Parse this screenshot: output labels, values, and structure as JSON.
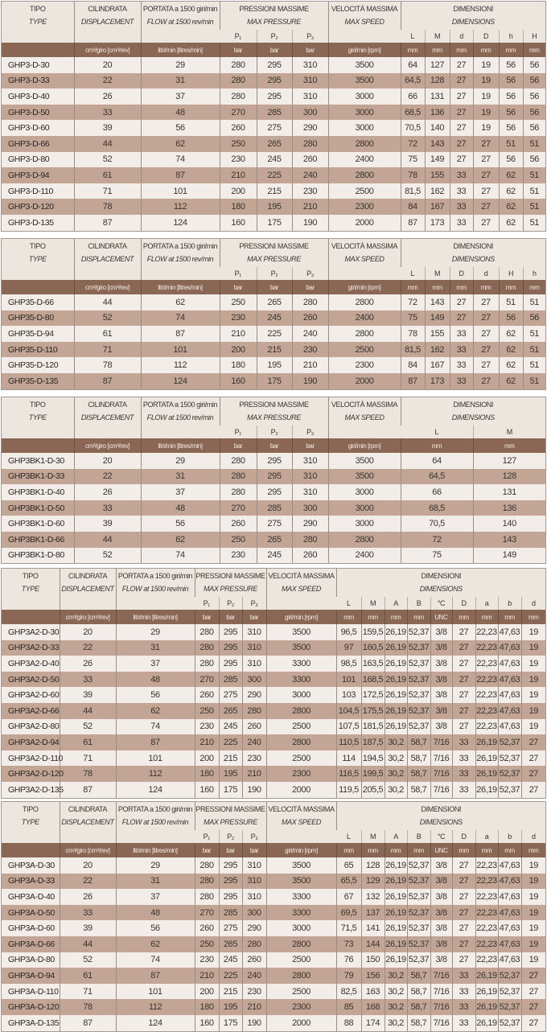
{
  "header": {
    "type_it": "TIPO",
    "type_en": "TYPE",
    "disp_it": "CILINDRATA",
    "disp_en": "DISPLACEMENT",
    "flow_it": "PORTATA a 1500 giri/min",
    "flow_en": "FLOW at 1500 rev/min",
    "press_it": "PRESSIONI MASSIME",
    "press_en": "MAX PRESSURE",
    "speed_it": "VELOCITÀ MASSIMA",
    "speed_en": "MAX SPEED",
    "dims_it": "DIMENSIONI",
    "dims_en": "DIMENSIONS",
    "pressure_cols": [
      "P₁",
      "P₂",
      "P₃"
    ],
    "unit_disp": "cm³/giro [cm³/rev]",
    "unit_flow": "litri/min [litres/min]",
    "unit_press": "bar",
    "unit_speed": "giri/min [rpm]"
  },
  "colors": {
    "header_bg": "#ede6df",
    "unit_bar": "#8a6654",
    "row_light": "#f2ede8",
    "row_dark": "#c2a594"
  },
  "tables": [
    {
      "dim_cols": [
        "L",
        "M",
        "d",
        "D",
        "h",
        "H"
      ],
      "dim_units": [
        "mm",
        "mm",
        "mm",
        "mm",
        "mm",
        "mm"
      ],
      "rows": [
        {
          "model": "GHP3-D-30",
          "values": [
            "20",
            "29",
            "280",
            "295",
            "310",
            "3500",
            "64",
            "127",
            "27",
            "19",
            "56",
            "56"
          ]
        },
        {
          "model": "GHP3-D-33",
          "values": [
            "22",
            "31",
            "280",
            "295",
            "310",
            "3500",
            "64,5",
            "128",
            "27",
            "19",
            "56",
            "56"
          ]
        },
        {
          "model": "GHP3-D-40",
          "values": [
            "26",
            "37",
            "280",
            "295",
            "310",
            "3000",
            "66",
            "131",
            "27",
            "19",
            "56",
            "56"
          ]
        },
        {
          "model": "GHP3-D-50",
          "values": [
            "33",
            "48",
            "270",
            "285",
            "300",
            "3000",
            "68,5",
            "136",
            "27",
            "19",
            "56",
            "56"
          ]
        },
        {
          "model": "GHP3-D-60",
          "values": [
            "39",
            "56",
            "260",
            "275",
            "290",
            "3000",
            "70,5",
            "140",
            "27",
            "19",
            "56",
            "56"
          ]
        },
        {
          "model": "GHP3-D-66",
          "values": [
            "44",
            "62",
            "250",
            "265",
            "280",
            "2800",
            "72",
            "143",
            "27",
            "27",
            "51",
            "51"
          ]
        },
        {
          "model": "GHP3-D-80",
          "values": [
            "52",
            "74",
            "230",
            "245",
            "260",
            "2400",
            "75",
            "149",
            "27",
            "27",
            "56",
            "56"
          ]
        },
        {
          "model": "GHP3-D-94",
          "values": [
            "61",
            "87",
            "210",
            "225",
            "240",
            "2800",
            "78",
            "155",
            "33",
            "27",
            "62",
            "51"
          ]
        },
        {
          "model": "GHP3-D-110",
          "values": [
            "71",
            "101",
            "200",
            "215",
            "230",
            "2500",
            "81,5",
            "162",
            "33",
            "27",
            "62",
            "51"
          ]
        },
        {
          "model": "GHP3-D-120",
          "values": [
            "78",
            "112",
            "180",
            "195",
            "210",
            "2300",
            "84",
            "167",
            "33",
            "27",
            "62",
            "51"
          ]
        },
        {
          "model": "GHP3-D-135",
          "values": [
            "87",
            "124",
            "160",
            "175",
            "190",
            "2000",
            "87",
            "173",
            "33",
            "27",
            "62",
            "51"
          ]
        }
      ]
    },
    {
      "dim_cols": [
        "L",
        "M",
        "D",
        "d",
        "H",
        "h"
      ],
      "dim_units": [
        "mm",
        "mm",
        "mm",
        "mm",
        "mm",
        "mm"
      ],
      "rows": [
        {
          "model": "GHP35-D-66",
          "values": [
            "44",
            "62",
            "250",
            "265",
            "280",
            "2800",
            "72",
            "143",
            "27",
            "27",
            "51",
            "51"
          ]
        },
        {
          "model": "GHP35-D-80",
          "values": [
            "52",
            "74",
            "230",
            "245",
            "260",
            "2400",
            "75",
            "149",
            "27",
            "27",
            "56",
            "56"
          ]
        },
        {
          "model": "GHP35-D-94",
          "values": [
            "61",
            "87",
            "210",
            "225",
            "240",
            "2800",
            "78",
            "155",
            "33",
            "27",
            "62",
            "51"
          ]
        },
        {
          "model": "GHP35-D-110",
          "values": [
            "71",
            "101",
            "200",
            "215",
            "230",
            "2500",
            "81,5",
            "162",
            "33",
            "27",
            "62",
            "51"
          ]
        },
        {
          "model": "GHP35-D-120",
          "values": [
            "78",
            "112",
            "180",
            "195",
            "210",
            "2300",
            "84",
            "167",
            "33",
            "27",
            "62",
            "51"
          ]
        },
        {
          "model": "GHP35-D-135",
          "values": [
            "87",
            "124",
            "160",
            "175",
            "190",
            "2000",
            "87",
            "173",
            "33",
            "27",
            "62",
            "51"
          ]
        }
      ]
    },
    {
      "dim_cols": [
        "L",
        "M"
      ],
      "dim_units": [
        "mm",
        "mm"
      ],
      "rows": [
        {
          "model": "GHP3BK1-D-30",
          "values": [
            "20",
            "29",
            "280",
            "295",
            "310",
            "3500",
            "64",
            "127"
          ]
        },
        {
          "model": "GHP3BK1-D-33",
          "values": [
            "22",
            "31",
            "280",
            "295",
            "310",
            "3500",
            "64,5",
            "128"
          ]
        },
        {
          "model": "GHP3BK1-D-40",
          "values": [
            "26",
            "37",
            "280",
            "295",
            "310",
            "3000",
            "66",
            "131"
          ]
        },
        {
          "model": "GHP3BK1-D-50",
          "values": [
            "33",
            "48",
            "270",
            "285",
            "300",
            "3000",
            "68,5",
            "136"
          ]
        },
        {
          "model": "GHP3BK1-D-60",
          "values": [
            "39",
            "56",
            "260",
            "275",
            "290",
            "3000",
            "70,5",
            "140"
          ]
        },
        {
          "model": "GHP3BK1-D-66",
          "values": [
            "44",
            "62",
            "250",
            "265",
            "280",
            "2800",
            "72",
            "143"
          ]
        },
        {
          "model": "GHP3BK1-D-80",
          "values": [
            "52",
            "74",
            "230",
            "245",
            "260",
            "2400",
            "75",
            "149"
          ]
        }
      ]
    },
    {
      "dim_cols": [
        "L",
        "M",
        "A",
        "B",
        "°C",
        "D",
        "a",
        "b",
        "d"
      ],
      "dim_units": [
        "mm",
        "mm",
        "mm",
        "mm",
        "UNC",
        "mm",
        "mm",
        "mm",
        "mm"
      ],
      "rows": [
        {
          "model": "GHP3A2-D-30",
          "values": [
            "20",
            "29",
            "280",
            "295",
            "310",
            "3500",
            "96,5",
            "159,5",
            "26,19",
            "52,37",
            "3/8",
            "27",
            "22,23",
            "47,63",
            "19"
          ]
        },
        {
          "model": "GHP3A2-D-33",
          "values": [
            "22",
            "31",
            "280",
            "295",
            "310",
            "3500",
            "97",
            "160,5",
            "26,19",
            "52,37",
            "3/8",
            "27",
            "22,23",
            "47,63",
            "19"
          ]
        },
        {
          "model": "GHP3A2-D-40",
          "values": [
            "26",
            "37",
            "280",
            "295",
            "310",
            "3300",
            "98,5",
            "163,5",
            "26,19",
            "52,37",
            "3/8",
            "27",
            "22,23",
            "47,63",
            "19"
          ]
        },
        {
          "model": "GHP3A2-D-50",
          "values": [
            "33",
            "48",
            "270",
            "285",
            "300",
            "3300",
            "101",
            "168,5",
            "26,19",
            "52,37",
            "3/8",
            "27",
            "22,23",
            "47,63",
            "19"
          ]
        },
        {
          "model": "GHP3A2-D-60",
          "values": [
            "39",
            "56",
            "260",
            "275",
            "290",
            "3000",
            "103",
            "172,5",
            "26,19",
            "52,37",
            "3/8",
            "27",
            "22,23",
            "47,63",
            "19"
          ]
        },
        {
          "model": "GHP3A2-D-66",
          "values": [
            "44",
            "62",
            "250",
            "265",
            "280",
            "2800",
            "104,5",
            "175,5",
            "26,19",
            "52,37",
            "3/8",
            "27",
            "22,23",
            "47,63",
            "19"
          ]
        },
        {
          "model": "GHP3A2-D-80",
          "values": [
            "52",
            "74",
            "230",
            "245",
            "260",
            "2500",
            "107,5",
            "181,5",
            "26,19",
            "52,37",
            "3/8",
            "27",
            "22,23",
            "47,63",
            "19"
          ]
        },
        {
          "model": "GHP3A2-D-94",
          "values": [
            "61",
            "87",
            "210",
            "225",
            "240",
            "2800",
            "110,5",
            "187,5",
            "30,2",
            "58,7",
            "7/16",
            "33",
            "26,19",
            "52,37",
            "27"
          ]
        },
        {
          "model": "GHP3A2-D-110",
          "values": [
            "71",
            "101",
            "200",
            "215",
            "230",
            "2500",
            "114",
            "194,5",
            "30,2",
            "58,7",
            "7/16",
            "33",
            "26,19",
            "52,37",
            "27"
          ]
        },
        {
          "model": "GHP3A2-D-120",
          "values": [
            "78",
            "112",
            "180",
            "195",
            "210",
            "2300",
            "116,5",
            "199,5",
            "30,2",
            "58,7",
            "7/16",
            "33",
            "26,19",
            "52,37",
            "27"
          ]
        },
        {
          "model": "GHP3A2-D-135",
          "values": [
            "87",
            "124",
            "160",
            "175",
            "190",
            "2000",
            "119,5",
            "205,5",
            "30,2",
            "58,7",
            "7/16",
            "33",
            "26,19",
            "52,37",
            "27"
          ]
        }
      ]
    },
    {
      "dim_cols": [
        "L",
        "M",
        "A",
        "B",
        "°C",
        "D",
        "a",
        "b",
        "d"
      ],
      "dim_units": [
        "mm",
        "mm",
        "mm",
        "mm",
        "UNC",
        "mm",
        "mm",
        "mm",
        "mm"
      ],
      "rows": [
        {
          "model": "GHP3A-D-30",
          "values": [
            "20",
            "29",
            "280",
            "295",
            "310",
            "3500",
            "65",
            "128",
            "26,19",
            "52,37",
            "3/8",
            "27",
            "22,23",
            "47,63",
            "19"
          ]
        },
        {
          "model": "GHP3A-D-33",
          "values": [
            "22",
            "31",
            "280",
            "295",
            "310",
            "3500",
            "65,5",
            "129",
            "26,19",
            "52,37",
            "3/8",
            "27",
            "22,23",
            "47,63",
            "19"
          ]
        },
        {
          "model": "GHP3A-D-40",
          "values": [
            "26",
            "37",
            "280",
            "295",
            "310",
            "3300",
            "67",
            "132",
            "26,19",
            "52,37",
            "3/8",
            "27",
            "22,23",
            "47,63",
            "19"
          ]
        },
        {
          "model": "GHP3A-D-50",
          "values": [
            "33",
            "48",
            "270",
            "285",
            "300",
            "3300",
            "69,5",
            "137",
            "26,19",
            "52,37",
            "3/8",
            "27",
            "22,23",
            "47,63",
            "19"
          ]
        },
        {
          "model": "GHP3A-D-60",
          "values": [
            "39",
            "56",
            "260",
            "275",
            "290",
            "3000",
            "71,5",
            "141",
            "26,19",
            "52,37",
            "3/8",
            "27",
            "22,23",
            "47,63",
            "19"
          ]
        },
        {
          "model": "GHP3A-D-66",
          "values": [
            "44",
            "62",
            "250",
            "265",
            "280",
            "2800",
            "73",
            "144",
            "26,19",
            "52,37",
            "3/8",
            "27",
            "22,23",
            "47,63",
            "19"
          ]
        },
        {
          "model": "GHP3A-D-80",
          "values": [
            "52",
            "74",
            "230",
            "245",
            "260",
            "2500",
            "76",
            "150",
            "26,19",
            "52,37",
            "3/8",
            "27",
            "22,23",
            "47,63",
            "19"
          ]
        },
        {
          "model": "GHP3A-D-94",
          "values": [
            "61",
            "87",
            "210",
            "225",
            "240",
            "2800",
            "79",
            "156",
            "30,2",
            "58,7",
            "7/16",
            "33",
            "26,19",
            "52,37",
            "27"
          ]
        },
        {
          "model": "GHP3A-D-110",
          "values": [
            "71",
            "101",
            "200",
            "215",
            "230",
            "2500",
            "82,5",
            "163",
            "30,2",
            "58,7",
            "7/16",
            "33",
            "26,19",
            "52,37",
            "27"
          ]
        },
        {
          "model": "GHP3A-D-120",
          "values": [
            "78",
            "112",
            "180",
            "195",
            "210",
            "2300",
            "85",
            "168",
            "30,2",
            "58,7",
            "7/16",
            "33",
            "26,19",
            "52,37",
            "27"
          ]
        },
        {
          "model": "GHP3A-D-135",
          "values": [
            "87",
            "124",
            "160",
            "175",
            "190",
            "2000",
            "88",
            "174",
            "30,2",
            "58,7",
            "7/16",
            "33",
            "26,19",
            "52,37",
            "27"
          ]
        }
      ]
    }
  ]
}
